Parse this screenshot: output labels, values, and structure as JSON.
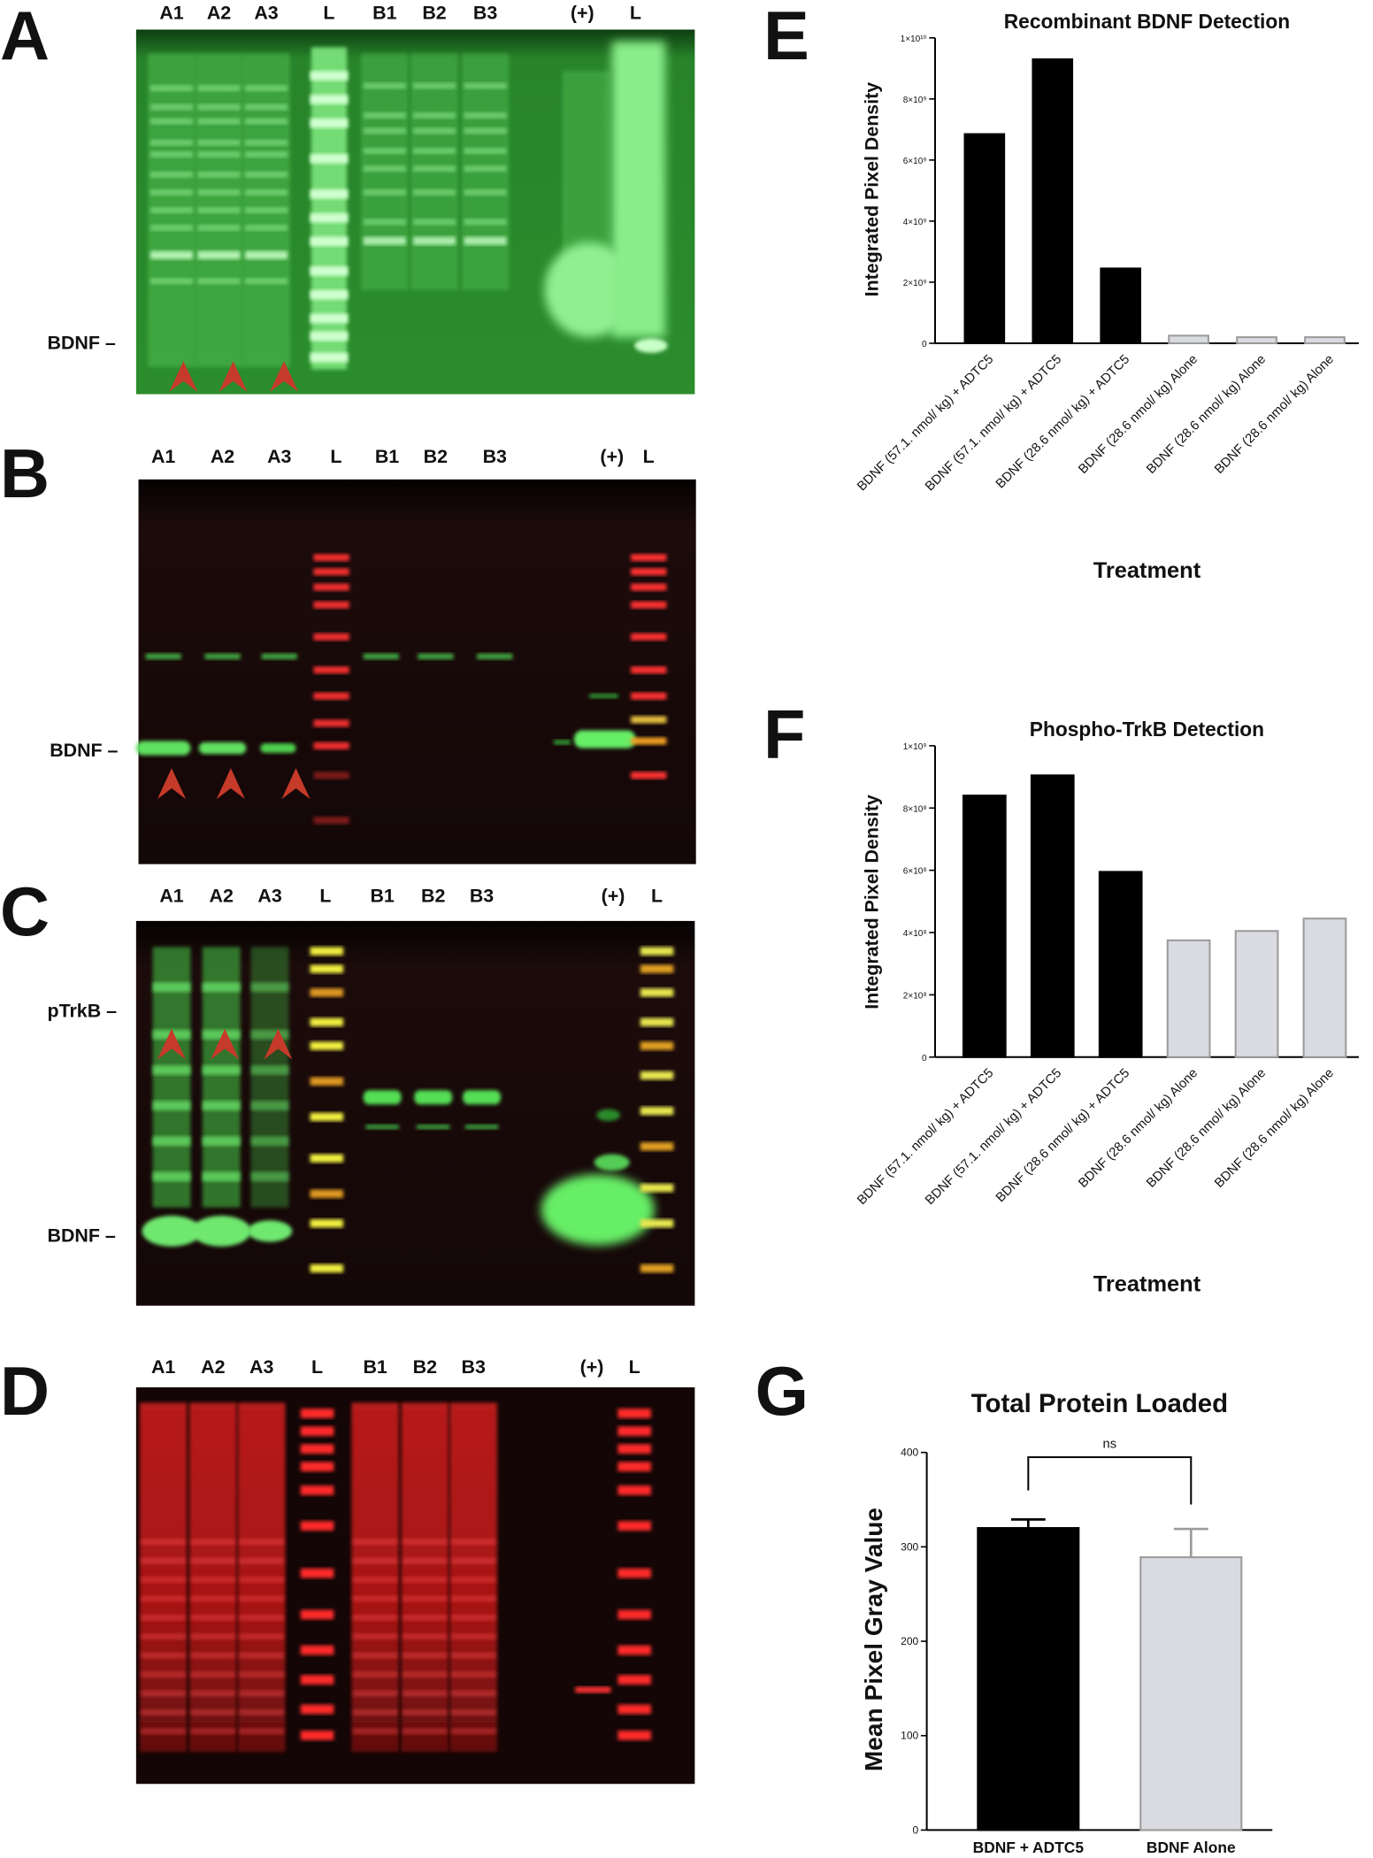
{
  "blots": [
    {
      "panel": "A",
      "lanes": [
        "A1",
        "A2",
        "A3",
        "L",
        "B1",
        "B2",
        "B3",
        "(+)",
        "L"
      ],
      "markers": [
        "BDNF –"
      ]
    },
    {
      "panel": "B",
      "lanes": [
        "A1",
        "A2",
        "A3",
        "L",
        "B1",
        "B2",
        "B3",
        "(+)",
        "L"
      ],
      "markers": [
        "BDNF –"
      ]
    },
    {
      "panel": "C",
      "lanes": [
        "A1",
        "A2",
        "A3",
        "L",
        "B1",
        "B2",
        "B3",
        "(+)",
        "L"
      ],
      "markers": [
        "pTrkB –",
        "BDNF –"
      ]
    },
    {
      "panel": "D",
      "lanes": [
        "A1",
        "A2",
        "A3",
        "L",
        "B1",
        "B2",
        "B3",
        "(+)",
        "L"
      ],
      "markers": []
    }
  ],
  "chart_data": [
    {
      "type": "bar",
      "panel": "E",
      "title": "Recombinant BDNF Detection",
      "xlabel": "Treatment",
      "ylabel": "Integrated Pixel Density",
      "categories": [
        "BDNF (57.1. nmol/ kg) + ADTC5",
        "BDNF (57.1. nmol/ kg) + ADTC5",
        "BDNF (28.6 nmol/ kg) + ADTC5",
        "BDNF (28.6 nmol/ kg) Alone",
        "BDNF (28.6 nmol/ kg) Alone",
        "BDNF (28.6 nmol/ kg) Alone"
      ],
      "values": [
        6850000000,
        9300000000,
        2450000000,
        250000000,
        200000000,
        200000000
      ],
      "colors": [
        "#000000",
        "#000000",
        "#000000",
        "#d9dbe0",
        "#d9dbe0",
        "#d9dbe0"
      ],
      "edgecolors": [
        "#000000",
        "#000000",
        "#000000",
        "#9a9a9a",
        "#9a9a9a",
        "#9a9a9a"
      ],
      "ylim": [
        0,
        10000000000
      ],
      "yticks": [
        0,
        {
          "value": 2000000000,
          "label": "2×10⁹"
        },
        {
          "value": 4000000000,
          "label": "4×10⁹"
        },
        {
          "value": 6000000000,
          "label": "6×10⁹"
        },
        {
          "value": 8000000000,
          "label": "8×10⁹"
        },
        {
          "value": 10000000000,
          "label": "1×10¹⁰"
        }
      ]
    },
    {
      "type": "bar",
      "panel": "F",
      "title": "Phospho-TrkB Detection",
      "xlabel": "Treatment",
      "ylabel": "Integrated Pixel Density",
      "categories": [
        "BDNF (57.1. nmol/ kg) + ADTC5",
        "BDNF (57.1. nmol/ kg) + ADTC5",
        "BDNF (28.6 nmol/ kg) + ADTC5",
        "BDNF (28.6 nmol/ kg) Alone",
        "BDNF (28.6 nmol/ kg) Alone",
        "BDNF (28.6 nmol/ kg) Alone"
      ],
      "values": [
        840000000,
        905000000,
        595000000,
        375000000,
        405000000,
        445000000
      ],
      "colors": [
        "#000000",
        "#000000",
        "#000000",
        "#d9dbe0",
        "#d9dbe0",
        "#d9dbe0"
      ],
      "edgecolors": [
        "#000000",
        "#000000",
        "#000000",
        "#9a9a9a",
        "#9a9a9a",
        "#9a9a9a"
      ],
      "ylim": [
        0,
        1000000000
      ],
      "yticks": [
        0,
        {
          "value": 200000000,
          "label": "2×10⁸"
        },
        {
          "value": 400000000,
          "label": "4×10⁸"
        },
        {
          "value": 600000000,
          "label": "6×10⁸"
        },
        {
          "value": 800000000,
          "label": "8×10⁸"
        },
        {
          "value": 1000000000,
          "label": "1×10⁹"
        }
      ]
    },
    {
      "type": "bar",
      "panel": "G",
      "title": "Total Protein Loaded",
      "ylabel": "Mean Pixel Gray Value",
      "annotation": "ns",
      "categories": [
        "BDNF + ADTC5",
        "BDNF Alone"
      ],
      "values": [
        320,
        289
      ],
      "errors": [
        9,
        30
      ],
      "colors": [
        "#000000",
        "#d9dbe0"
      ],
      "edgecolors": [
        "#000000",
        "#9a9a9a"
      ],
      "ylim": [
        0,
        400
      ],
      "yticks": [
        0,
        100,
        200,
        300,
        400
      ]
    }
  ]
}
